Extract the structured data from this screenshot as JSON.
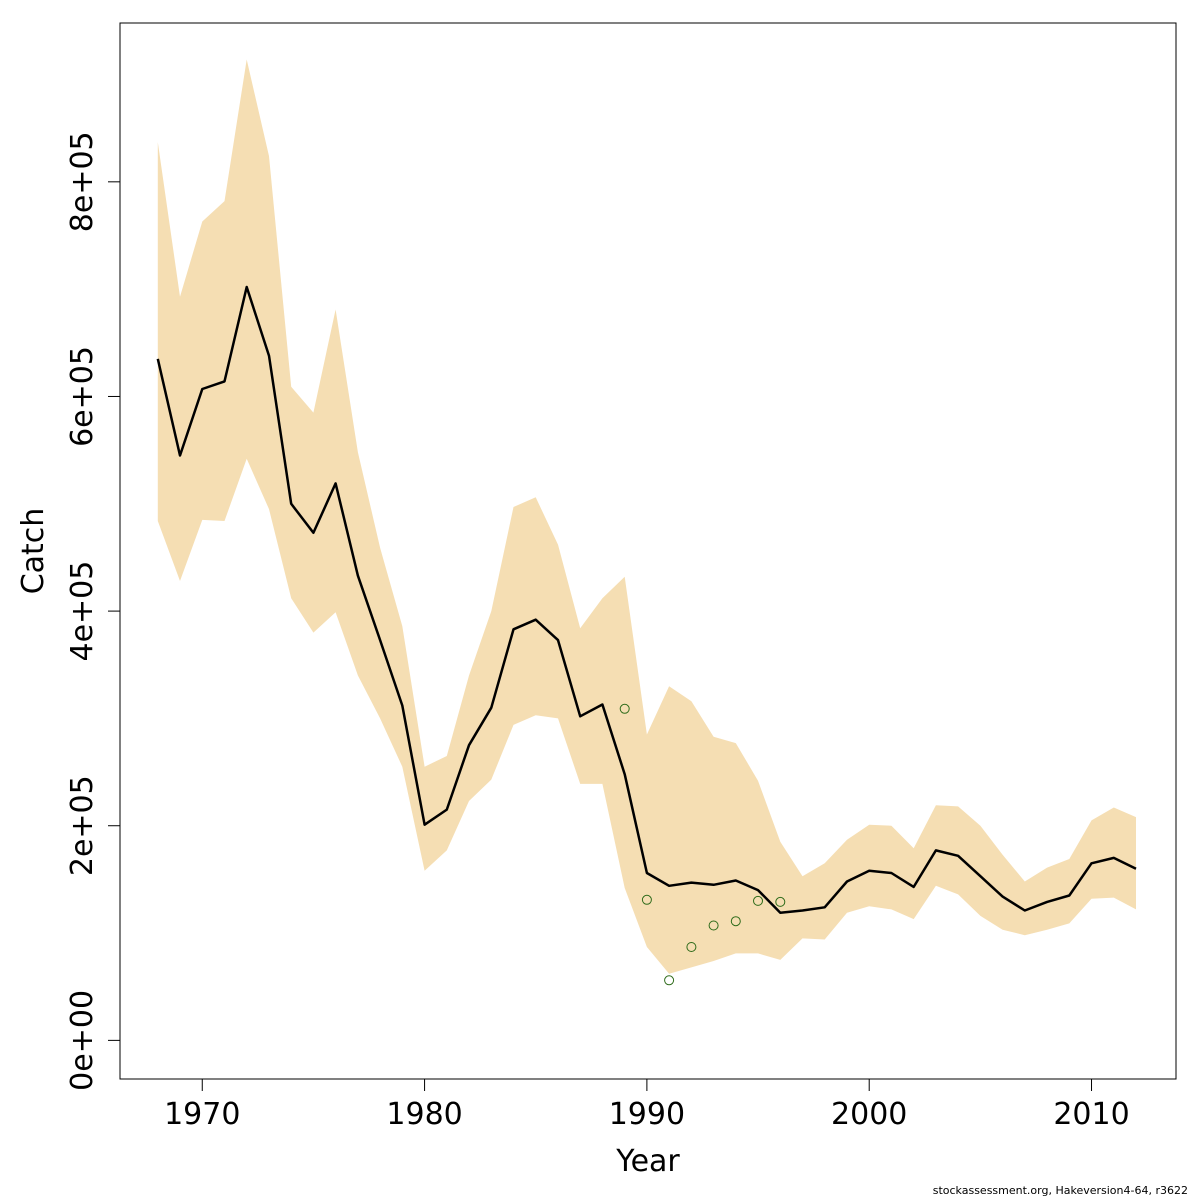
{
  "chart_data": {
    "type": "line",
    "xlabel": "Year",
    "ylabel": "Catch",
    "xlim": [
      1966.3,
      2013.8
    ],
    "ylim": [
      -36000,
      948000
    ],
    "x_ticks": [
      1970,
      1980,
      1990,
      2000,
      2010
    ],
    "x_tick_labels": [
      "1970",
      "1980",
      "1990",
      "2000",
      "2010"
    ],
    "y_ticks": [
      0,
      200000,
      400000,
      600000,
      800000
    ],
    "y_tick_labels": [
      "0e+00",
      "2e+05",
      "4e+05",
      "6e+05",
      "8e+05"
    ],
    "band_color": "#f5deb3",
    "line_color": "#000000",
    "point_color": "#2e6b1a",
    "band": {
      "x": [
        1968,
        1969,
        1970,
        1971,
        1972,
        1973,
        1974,
        1975,
        1976,
        1977,
        1978,
        1979,
        1980,
        1981,
        1982,
        1983,
        1984,
        1985,
        1986,
        1987,
        1988,
        1989,
        1990,
        1991,
        1992,
        1993,
        1994,
        1995,
        1996,
        1997,
        1998,
        1999,
        2000,
        2001,
        2002,
        2003,
        2004,
        2005,
        2006,
        2007,
        2008,
        2009,
        2010,
        2011,
        2012
      ],
      "lower": [
        484000,
        428000,
        485000,
        484000,
        542000,
        495000,
        412000,
        380000,
        399000,
        340000,
        300000,
        255000,
        158000,
        177000,
        223000,
        243000,
        294000,
        303000,
        300000,
        239000,
        239000,
        142000,
        87000,
        62000,
        68000,
        74000,
        81000,
        81000,
        75000,
        95000,
        94000,
        119000,
        125000,
        122000,
        113000,
        144000,
        136000,
        116000,
        103000,
        98000,
        103000,
        109000,
        132000,
        133000,
        122000
      ],
      "upper": [
        837000,
        693000,
        763000,
        782000,
        914000,
        824000,
        609000,
        585000,
        681000,
        548000,
        459000,
        386000,
        255000,
        265000,
        340000,
        400000,
        497000,
        506000,
        462000,
        384000,
        412000,
        432000,
        285000,
        330000,
        316000,
        283000,
        277000,
        242000,
        185000,
        153000,
        165000,
        187000,
        201000,
        200000,
        179000,
        219000,
        218000,
        200000,
        173000,
        148000,
        161000,
        169000,
        205000,
        217000,
        208000
      ]
    },
    "series": [
      {
        "x": [
          1968,
          1969,
          1970,
          1971,
          1972,
          1973,
          1974,
          1975,
          1976,
          1977,
          1978,
          1979,
          1980,
          1981,
          1982,
          1983,
          1984,
          1985,
          1986,
          1987,
          1988,
          1989,
          1990,
          1991,
          1992,
          1993,
          1994,
          1995,
          1996,
          1997,
          1998,
          1999,
          2000,
          2001,
          2002,
          2003,
          2004,
          2005,
          2006,
          2007,
          2008,
          2009,
          2010,
          2011,
          2012
        ],
        "values": [
          635000,
          545000,
          607000,
          614000,
          702000,
          638000,
          500000,
          473000,
          519000,
          433000,
          373000,
          312000,
          201000,
          215000,
          275000,
          310000,
          383000,
          392000,
          373000,
          302000,
          313000,
          248000,
          156000,
          144000,
          147000,
          145000,
          149000,
          140000,
          119000,
          121000,
          124000,
          148000,
          158000,
          156000,
          143000,
          177000,
          172000,
          153000,
          134000,
          121000,
          129000,
          135000,
          165000,
          170000,
          160000
        ]
      }
    ],
    "points": {
      "x": [
        1989,
        1990,
        1991,
        1992,
        1993,
        1994,
        1995,
        1996
      ],
      "values": [
        309000,
        131000,
        56000,
        87000,
        107000,
        111000,
        130000,
        129000
      ]
    },
    "footer": "stockassessment.org, Hakeversion4-64, r3622"
  }
}
